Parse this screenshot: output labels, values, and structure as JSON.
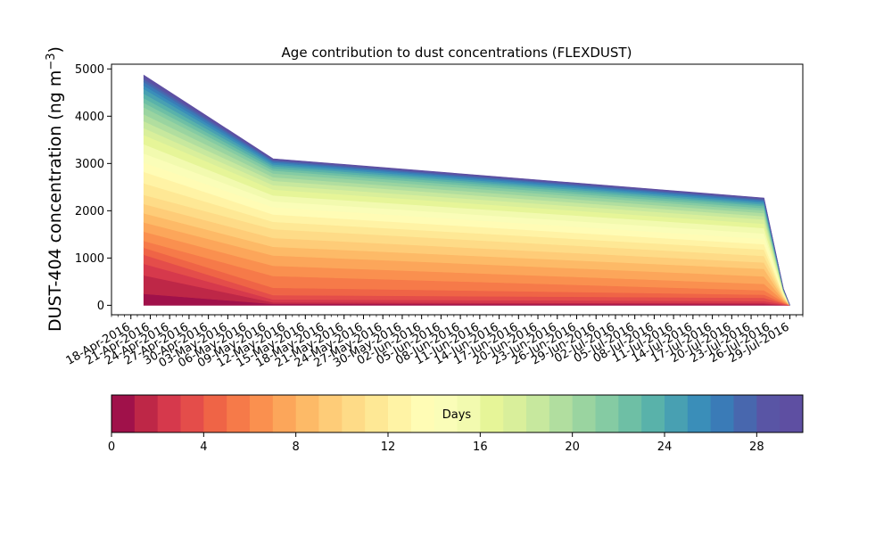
{
  "chart_data": {
    "type": "area",
    "title": "Age contribution to dust concentrations (FLEXDUST)",
    "ylabel": "DUST-404 concentration (ng m",
    "ylabel_sup": "−3",
    "ylabel_close": ")",
    "xlabel": "",
    "x_dates": [
      "2016-04-20",
      "2016-05-10",
      "2016-07-25",
      "2016-07-28",
      "2016-07-29"
    ],
    "xlim": [
      "2016-04-15",
      "2016-07-31"
    ],
    "ylim": [
      -200,
      5100
    ],
    "grid": false,
    "yticks": [
      0,
      1000,
      2000,
      3000,
      4000,
      5000
    ],
    "xtick_labels": [
      "18-Apr-2016",
      "21-Apr-2016",
      "24-Apr-2016",
      "27-Apr-2016",
      "30-Apr-2016",
      "03-May-2016",
      "06-May-2016",
      "09-May-2016",
      "12-May-2016",
      "15-May-2016",
      "18-May-2016",
      "21-May-2016",
      "24-May-2016",
      "27-May-2016",
      "30-May-2016",
      "02-Jun-2016",
      "05-Jun-2016",
      "08-Jun-2016",
      "11-Jun-2016",
      "14-Jun-2016",
      "17-Jun-2016",
      "20-Jun-2016",
      "23-Jun-2016",
      "26-Jun-2016",
      "29-Jun-2016",
      "02-Jul-2016",
      "05-Jul-2016",
      "08-Jul-2016",
      "11-Jul-2016",
      "14-Jul-2016",
      "17-Jul-2016",
      "20-Jul-2016",
      "23-Jul-2016",
      "26-Jul-2016",
      "29-Jul-2016"
    ],
    "total": [
      4870,
      3100,
      2270,
      350,
      0
    ],
    "age_fraction_cumulative": [
      [
        0,
        0,
        0,
        0,
        0
      ],
      [
        0.05,
        0.01,
        0.01,
        0.01,
        0
      ],
      [
        0.13,
        0.02,
        0.02,
        0.03,
        0
      ],
      [
        0.18,
        0.04,
        0.04,
        0.06,
        0
      ],
      [
        0.22,
        0.07,
        0.07,
        0.1,
        0
      ],
      [
        0.25,
        0.12,
        0.1,
        0.14,
        0
      ],
      [
        0.28,
        0.2,
        0.14,
        0.2,
        0
      ],
      [
        0.32,
        0.27,
        0.2,
        0.26,
        0
      ],
      [
        0.36,
        0.34,
        0.27,
        0.33,
        0
      ],
      [
        0.4,
        0.4,
        0.34,
        0.4,
        0
      ],
      [
        0.44,
        0.46,
        0.4,
        0.47,
        0
      ],
      [
        0.48,
        0.52,
        0.46,
        0.53,
        0
      ],
      [
        0.53,
        0.57,
        0.52,
        0.59,
        0
      ],
      [
        0.58,
        0.62,
        0.57,
        0.64,
        0
      ],
      [
        0.62,
        0.67,
        0.62,
        0.69,
        0
      ],
      [
        0.66,
        0.71,
        0.67,
        0.73,
        0
      ],
      [
        0.7,
        0.75,
        0.72,
        0.77,
        0
      ],
      [
        0.74,
        0.79,
        0.76,
        0.81,
        0
      ],
      [
        0.77,
        0.82,
        0.8,
        0.84,
        0
      ],
      [
        0.8,
        0.85,
        0.83,
        0.87,
        0
      ],
      [
        0.83,
        0.875,
        0.86,
        0.89,
        0
      ],
      [
        0.86,
        0.9,
        0.885,
        0.91,
        0
      ],
      [
        0.88,
        0.92,
        0.905,
        0.93,
        0
      ],
      [
        0.9,
        0.935,
        0.925,
        0.945,
        0
      ],
      [
        0.92,
        0.95,
        0.94,
        0.96,
        0
      ],
      [
        0.94,
        0.962,
        0.955,
        0.97,
        0
      ],
      [
        0.955,
        0.973,
        0.968,
        0.978,
        0
      ],
      [
        0.97,
        0.982,
        0.979,
        0.986,
        0
      ],
      [
        0.982,
        0.99,
        0.988,
        0.992,
        0
      ],
      [
        0.992,
        0.996,
        0.995,
        0.997,
        0
      ],
      [
        1,
        1,
        1,
        1,
        0
      ]
    ],
    "colorbar": {
      "label": "Days",
      "min": 0,
      "max": 30,
      "ticks": [
        0,
        4,
        8,
        12,
        16,
        20,
        24,
        28
      ],
      "colormap": "Spectral",
      "colors": [
        "#a0114a",
        "#be2747",
        "#d6394c",
        "#e44d4a",
        "#ef6446",
        "#f67a49",
        "#fa904f",
        "#fca65a",
        "#fdba67",
        "#fecc78",
        "#fedb87",
        "#fee895",
        "#fff3a5",
        "#fffcb5",
        "#fafdb8",
        "#f2faaf",
        "#e6f598",
        "#d9ef9b",
        "#c7e89e",
        "#b1de9f",
        "#9ad4a0",
        "#85cba3",
        "#6ebfa5",
        "#59b2aa",
        "#48a0b2",
        "#3a8eb9",
        "#3a7bb7",
        "#4867ae",
        "#5955a5",
        "#5e4fa2"
      ]
    }
  }
}
